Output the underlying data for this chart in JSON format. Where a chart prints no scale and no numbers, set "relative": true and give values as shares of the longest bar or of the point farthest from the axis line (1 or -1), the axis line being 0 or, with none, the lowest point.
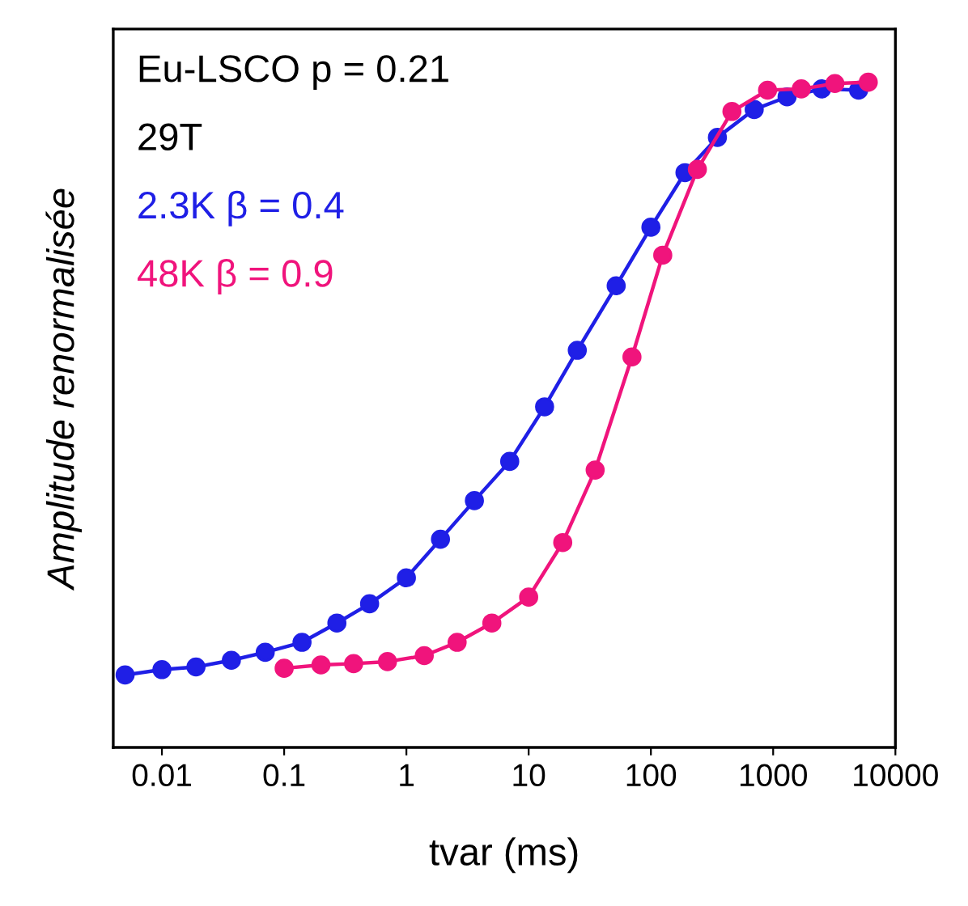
{
  "chart_data": {
    "type": "line",
    "relative": true,
    "xlabel": "tvar (ms)",
    "ylabel": "Amplitude renormalisée",
    "log": "x",
    "xlim": [
      0.004,
      10000
    ],
    "xticks": [
      0.01,
      0.1,
      1,
      10,
      100,
      1000,
      10000
    ],
    "marker": "circle",
    "line_style": "solid",
    "grid": false,
    "legend": "top left",
    "annotations": [
      "Eu-LSCO p = 0.21",
      "29T"
    ],
    "series": [
      {
        "name": "2.3K β = 0.4",
        "color": "#1f1fe6",
        "x": [
          0.005,
          0.01,
          0.019,
          0.037,
          0.07,
          0.14,
          0.27,
          0.5,
          1,
          1.9,
          3.6,
          7,
          13.5,
          25,
          52,
          100,
          190,
          350,
          700,
          1300,
          2500,
          5000
        ],
        "values": [
          0.109,
          0.117,
          0.121,
          0.131,
          0.143,
          0.158,
          0.187,
          0.216,
          0.255,
          0.313,
          0.371,
          0.43,
          0.512,
          0.597,
          0.694,
          0.782,
          0.864,
          0.917,
          0.959,
          0.978,
          0.99,
          0.988
        ]
      },
      {
        "name": "48K β = 0.9",
        "color": "#f0147c",
        "x": [
          0.1,
          0.2,
          0.37,
          0.7,
          1.4,
          2.6,
          5,
          10,
          19,
          35,
          70,
          125,
          240,
          460,
          900,
          1700,
          3200,
          6000
        ],
        "values": [
          0.119,
          0.124,
          0.126,
          0.129,
          0.138,
          0.158,
          0.187,
          0.226,
          0.308,
          0.417,
          0.587,
          0.74,
          0.869,
          0.956,
          0.988,
          0.99,
          0.998,
          1
        ]
      }
    ]
  }
}
